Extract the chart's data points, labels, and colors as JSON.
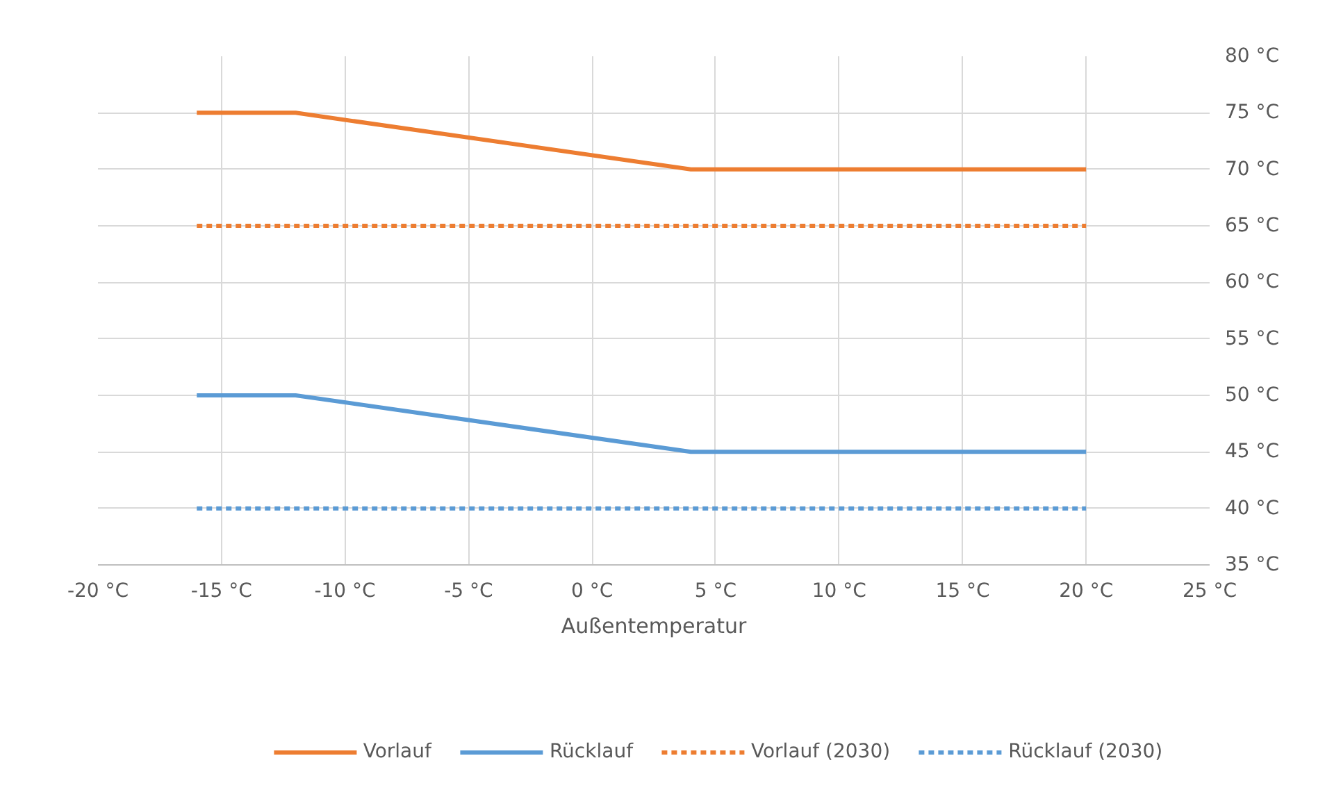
{
  "chart_data": {
    "type": "line",
    "xlabel": "Außentemperatur",
    "xlim": [
      -20,
      25
    ],
    "ylim": [
      35,
      80
    ],
    "xticks": [
      {
        "value": -20,
        "label": "-20 °C"
      },
      {
        "value": -15,
        "label": "-15 °C"
      },
      {
        "value": -10,
        "label": "-10 °C"
      },
      {
        "value": -5,
        "label": "-5 °C"
      },
      {
        "value": 0,
        "label": "0 °C"
      },
      {
        "value": 5,
        "label": "5 °C"
      },
      {
        "value": 10,
        "label": "10 °C"
      },
      {
        "value": 15,
        "label": "15 °C"
      },
      {
        "value": 20,
        "label": "20 °C"
      },
      {
        "value": 25,
        "label": "25 °C"
      }
    ],
    "yticks": [
      {
        "value": 35,
        "label": "35 °C"
      },
      {
        "value": 40,
        "label": "40 °C"
      },
      {
        "value": 45,
        "label": "45 °C"
      },
      {
        "value": 50,
        "label": "50 °C"
      },
      {
        "value": 55,
        "label": "55 °C"
      },
      {
        "value": 60,
        "label": "60 °C"
      },
      {
        "value": 65,
        "label": "65 °C"
      },
      {
        "value": 70,
        "label": "70 °C"
      },
      {
        "value": 75,
        "label": "75 °C"
      },
      {
        "value": 80,
        "label": "80 °C"
      }
    ],
    "grid": true,
    "legend": "bottom",
    "marker": "none",
    "series": [
      {
        "name": "Vorlauf",
        "color": "#ed7d31",
        "x": [
          -16,
          -12,
          4,
          20
        ],
        "values": [
          75,
          75,
          70,
          70
        ],
        "line_style": "solid"
      },
      {
        "name": "Rücklauf",
        "color": "#5b9bd5",
        "x": [
          -16,
          -12,
          4,
          20
        ],
        "values": [
          50,
          50,
          45,
          45
        ],
        "line_style": "solid"
      },
      {
        "name": "Vorlauf (2030)",
        "color": "#ed7d31",
        "x": [
          -16,
          20
        ],
        "values": [
          65,
          65
        ],
        "line_style": "dashed"
      },
      {
        "name": "Rücklauf (2030)",
        "color": "#5b9bd5",
        "x": [
          -16,
          20
        ],
        "values": [
          40,
          40
        ],
        "line_style": "dashed"
      }
    ]
  }
}
